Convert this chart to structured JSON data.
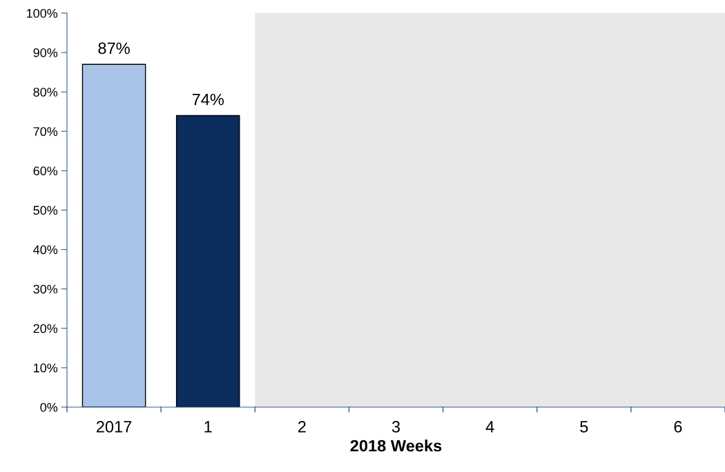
{
  "chart_data": {
    "type": "bar",
    "xlabel": "2018 Weeks",
    "categories": [
      "2017",
      "1",
      "2",
      "3",
      "4",
      "5",
      "6"
    ],
    "values": [
      87,
      74,
      null,
      null,
      null,
      null,
      null
    ],
    "colors": [
      "#a9c4e8",
      "#0a2d5e",
      "#0a2d5e",
      "#0a2d5e",
      "#0a2d5e",
      "#0a2d5e",
      "#0a2d5e"
    ],
    "value_labels": [
      "87%",
      "74%",
      null,
      null,
      null,
      null,
      null
    ],
    "ylim": [
      0,
      100
    ],
    "yticks": [
      {
        "value": 0,
        "label": "0%"
      },
      {
        "value": 10,
        "label": "10%"
      },
      {
        "value": 20,
        "label": "20%"
      },
      {
        "value": 30,
        "label": "30%"
      },
      {
        "value": 40,
        "label": "40%"
      },
      {
        "value": 50,
        "label": "50%"
      },
      {
        "value": 60,
        "label": "60%"
      },
      {
        "value": 70,
        "label": "70%"
      },
      {
        "value": 80,
        "label": "80%"
      },
      {
        "value": 90,
        "label": "90%"
      },
      {
        "value": 100,
        "label": "100%"
      }
    ],
    "bands": [
      {
        "axis": "x",
        "from": "2",
        "to": "6",
        "color": "#e8e8e8"
      }
    ],
    "grid": false,
    "legend": false
  }
}
